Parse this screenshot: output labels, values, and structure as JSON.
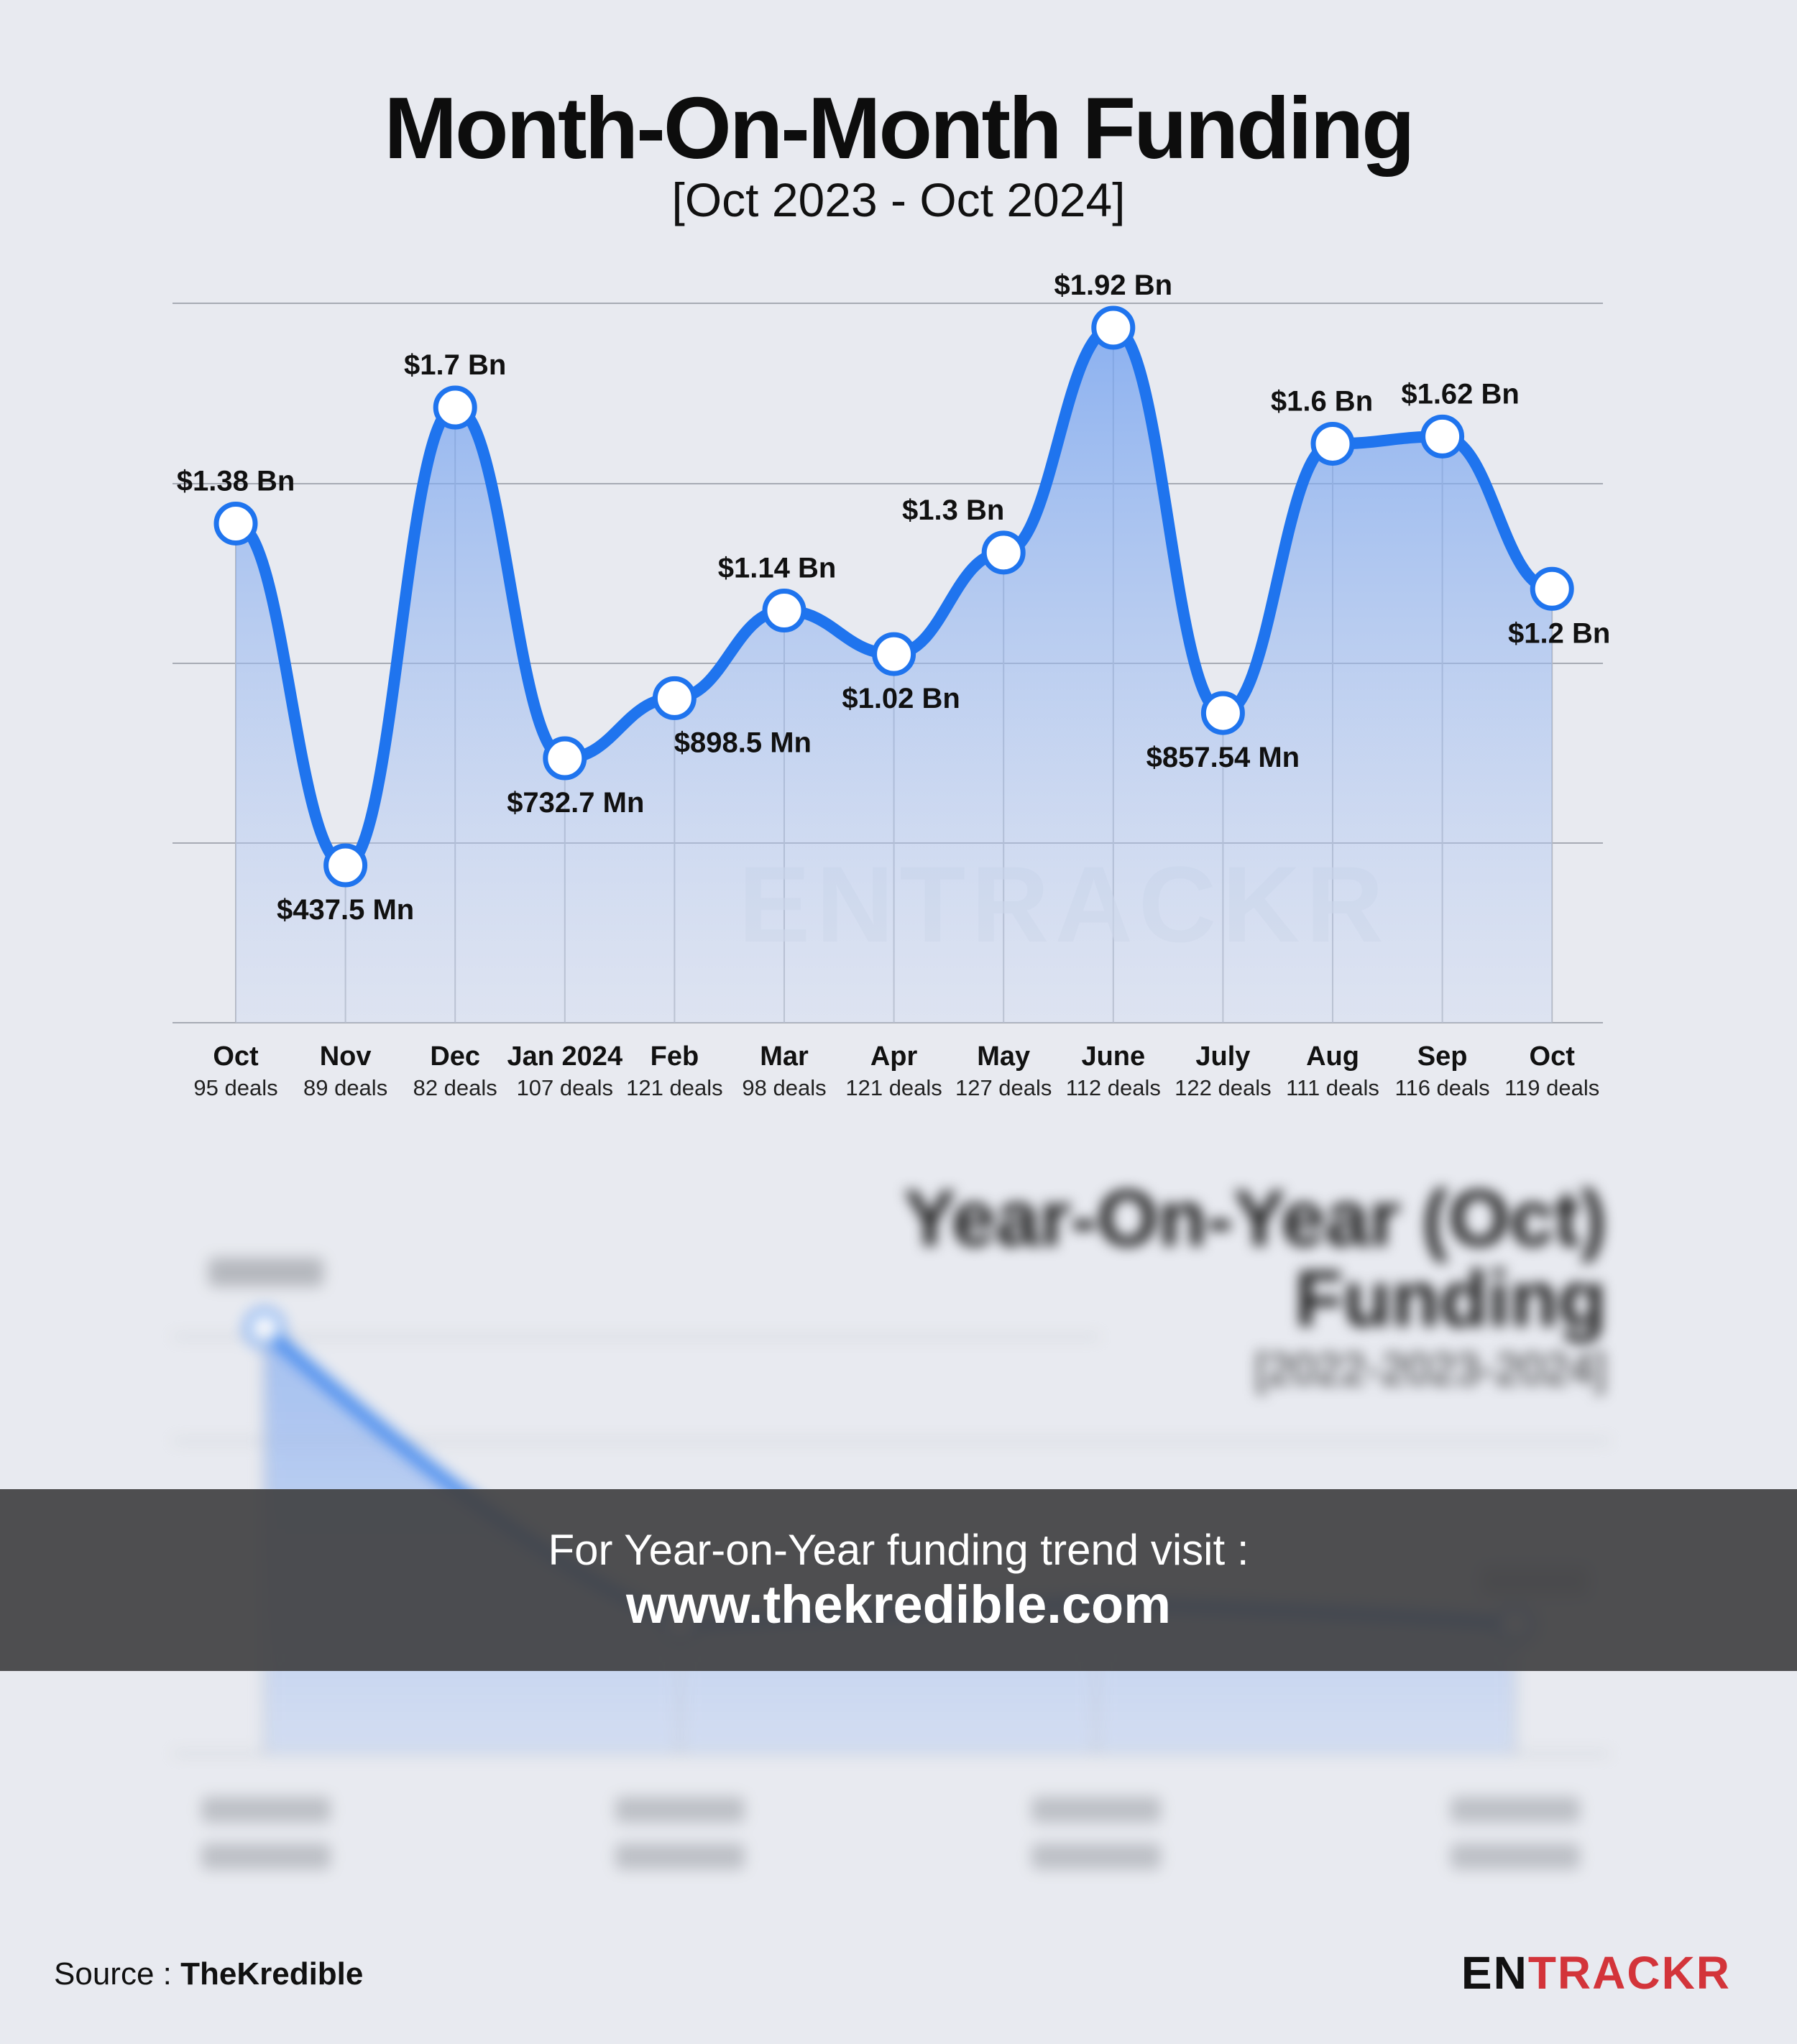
{
  "title": "Month-On-Month Funding",
  "subtitle": "[Oct 2023 - Oct 2024]",
  "chart_data": {
    "type": "line",
    "categories": [
      "Oct",
      "Nov",
      "Dec",
      "Jan 2024",
      "Feb",
      "Mar",
      "Apr",
      "May",
      "June",
      "July",
      "Aug",
      "Sep",
      "Oct"
    ],
    "deals": [
      "95 deals",
      "89 deals",
      "82 deals",
      "107 deals",
      "121 deals",
      "98 deals",
      "121 deals",
      "127 deals",
      "112 deals",
      "122 deals",
      "111 deals",
      "116 deals",
      "119 deals"
    ],
    "values": [
      1.38,
      0.4375,
      1.7,
      0.7327,
      0.8985,
      1.14,
      1.02,
      1.3,
      1.92,
      0.85754,
      1.6,
      1.62,
      1.2
    ],
    "value_labels": [
      "$1.38 Bn",
      "$437.5 Mn",
      "$1.7 Bn",
      "$732.7 Mn",
      "$898.5 Mn",
      "$1.14 Bn",
      "$1.02 Bn",
      "$1.3 Bn",
      "$1.92 Bn",
      "$857.54 Mn",
      "$1.6 Bn",
      "$1.62 Bn",
      "$1.2 Bn"
    ],
    "unit": "USD Bn",
    "ylim": [
      0,
      2.0
    ],
    "grid": true,
    "colors": {
      "line": "#1f74ee",
      "fill": "#6d9ef0",
      "marker_fill": "#ffffff"
    },
    "watermark": "ENTRACKR"
  },
  "yoy": {
    "title_line1": "Year-On-Year (Oct)",
    "title_line2": "Funding",
    "subtitle": "[2022-2023-2024]"
  },
  "banner": {
    "line1": "For Year-on-Year funding trend visit :",
    "line2": "www.thekredible.com"
  },
  "footer": {
    "source_prefix": "Source : ",
    "source_name": "TheKredible",
    "logo_en": "EN",
    "logo_rest": "TRACKR"
  }
}
